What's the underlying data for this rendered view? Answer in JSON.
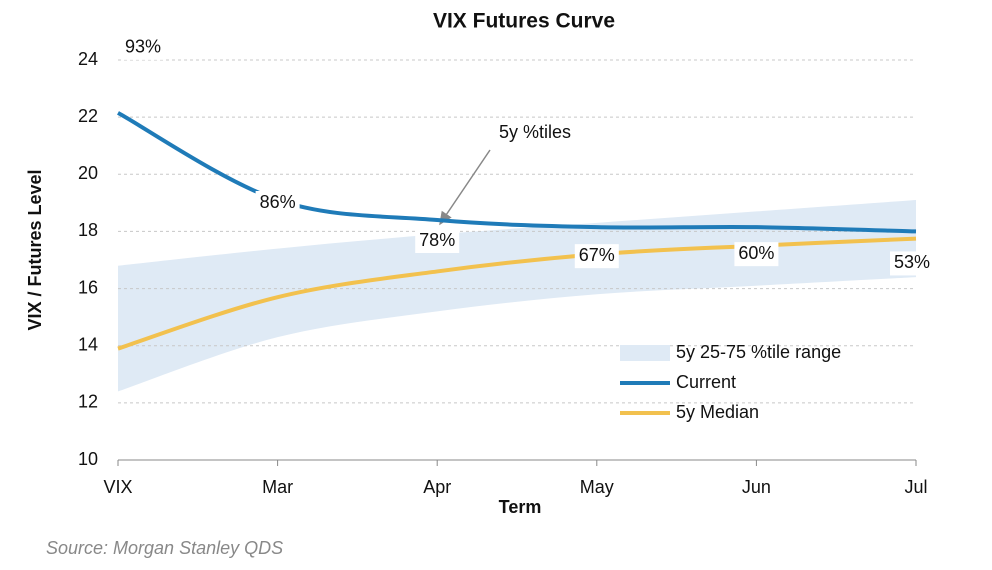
{
  "chart_data": {
    "type": "line",
    "title": "VIX Futures Curve",
    "x_label": "Term",
    "y_label": "VIX / Futures Level",
    "categories": [
      "VIX",
      "Mar",
      "Apr",
      "May",
      "Jun",
      "Jul"
    ],
    "ylim": [
      10,
      24
    ],
    "yticks": [
      10,
      12,
      14,
      16,
      18,
      20,
      22,
      24
    ],
    "grid": true,
    "band": {
      "name": "5y 25-75 %tile range",
      "color": "#dfeaf5",
      "lower": [
        12.4,
        14.3,
        15.2,
        15.8,
        16.1,
        16.4
      ],
      "upper": [
        16.8,
        17.4,
        17.9,
        18.3,
        18.7,
        19.1
      ]
    },
    "series": [
      {
        "name": "Current",
        "color": "#1f7bb8",
        "values": [
          22.15,
          19.1,
          18.4,
          18.15,
          18.15,
          18.0
        ],
        "percentile_labels": [
          "93%",
          "86%",
          "78%",
          "67%",
          "60%",
          "53%"
        ]
      },
      {
        "name": "5y Median",
        "color": "#f2c14e",
        "values": [
          13.9,
          15.7,
          16.6,
          17.2,
          17.5,
          17.75
        ]
      }
    ],
    "annotation": "5y %tiles",
    "source": "Source: Morgan Stanley QDS",
    "legend": "lower-right"
  }
}
